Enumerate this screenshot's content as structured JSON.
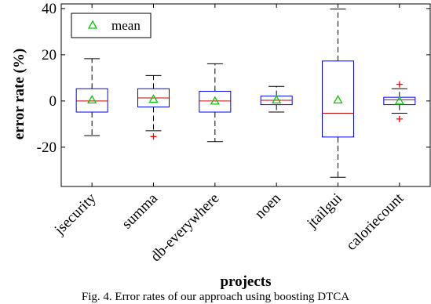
{
  "chart_data": {
    "type": "box",
    "xlabel": "projects",
    "ylabel": "error rate (%)",
    "ylim": [
      -37,
      42
    ],
    "yticks": [
      -20,
      0,
      20,
      40
    ],
    "legend": {
      "entries": [
        "mean"
      ],
      "placement": "top-left"
    },
    "grid": false,
    "colors": {
      "box": "#0000ff",
      "median": "#cc0000",
      "whisker": "#000000",
      "outlier": "#ff0000",
      "mean": "#00cc00"
    },
    "categories": [
      "jsecurity",
      "summa",
      "db-everywhere",
      "noen",
      "jtailgui",
      "caloriecount"
    ],
    "boxes": [
      {
        "q1": -4.8,
        "median": 0.0,
        "q3": 5.3,
        "whisker_low": -15.0,
        "whisker_high": 18.3,
        "mean": 0.5,
        "outliers": []
      },
      {
        "q1": -2.6,
        "median": 1.3,
        "q3": 5.3,
        "whisker_low": -12.9,
        "whisker_high": 11.0,
        "mean": 0.8,
        "outliers": [
          -15.4
        ]
      },
      {
        "q1": -4.8,
        "median": 0.0,
        "q3": 4.2,
        "whisker_low": -17.6,
        "whisker_high": 16.1,
        "mean": 0.0,
        "outliers": []
      },
      {
        "q1": -1.6,
        "median": 0.3,
        "q3": 2.1,
        "whisker_low": -4.8,
        "whisker_high": 6.3,
        "mean": 0.5,
        "outliers": []
      },
      {
        "q1": -15.6,
        "median": -5.3,
        "q3": 17.3,
        "whisker_low": -33.0,
        "whisker_high": 39.8,
        "mean": 0.5,
        "outliers": []
      },
      {
        "q1": -1.6,
        "median": 0.5,
        "q3": 1.6,
        "whisker_low": -5.3,
        "whisker_high": 5.3,
        "mean": 0.0,
        "outliers": [
          7.2,
          -7.8
        ]
      }
    ]
  },
  "caption": "Fig. 4.  Error rates of our approach using boosting DTCA"
}
